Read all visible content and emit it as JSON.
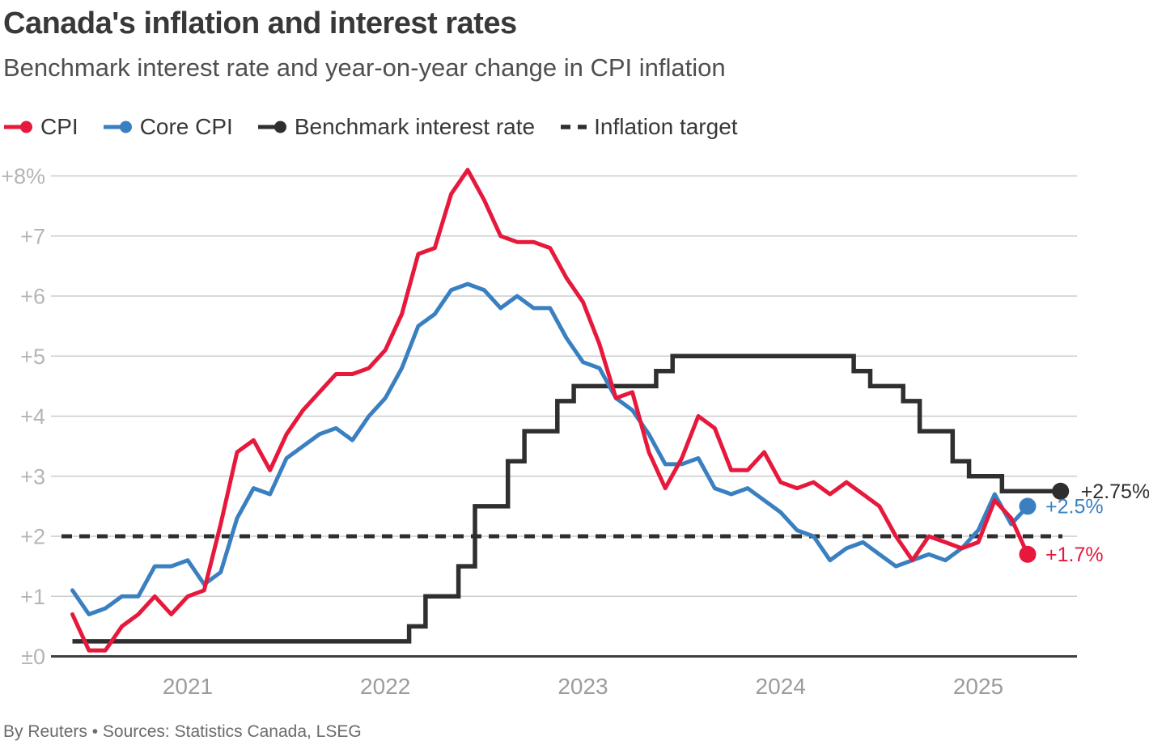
{
  "page": {
    "title": "Canada's inflation and interest rates",
    "subtitle": "Benchmark interest rate and year-on-year change in CPI inflation",
    "footer": "By Reuters • Sources: Statistics Canada, LSEG"
  },
  "legend": {
    "items": [
      {
        "label": "CPI",
        "marker": "line-dot",
        "color": "#e6193c"
      },
      {
        "label": "Core CPI",
        "marker": "line-dot",
        "color": "#3a80c1"
      },
      {
        "label": "Benchmark interest rate",
        "marker": "line-dot",
        "color": "#2f2f2f"
      },
      {
        "label": "Inflation target",
        "marker": "dashes",
        "color": "#2f2f2f"
      }
    ]
  },
  "chart_data": {
    "type": "line",
    "title": "Canada's inflation and interest rates",
    "subtitle": "Benchmark interest rate and year-on-year change in CPI inflation",
    "x_start_month": "2020-06",
    "x_frequency": "monthly",
    "x_axis": {
      "ticks": [
        {
          "label": "2021",
          "month_index": 7
        },
        {
          "label": "2022",
          "month_index": 19
        },
        {
          "label": "2023",
          "month_index": 31
        },
        {
          "label": "2024",
          "month_index": 43
        },
        {
          "label": "2025",
          "month_index": 55
        }
      ]
    },
    "y_axis": {
      "min": 0,
      "max": 8,
      "unit": "%",
      "ticks": [
        {
          "value": 8,
          "label": "+8%"
        },
        {
          "value": 7,
          "label": "+7"
        },
        {
          "value": 6,
          "label": "+6"
        },
        {
          "value": 5,
          "label": "+5"
        },
        {
          "value": 4,
          "label": "+4"
        },
        {
          "value": 3,
          "label": "+3"
        },
        {
          "value": 2,
          "label": "+2"
        },
        {
          "value": 1,
          "label": "+1"
        },
        {
          "value": 0,
          "label": "±0"
        }
      ]
    },
    "target_line": {
      "name": "Inflation target",
      "value": 2,
      "style": "dashed",
      "color": "#2f2f2f"
    },
    "series": [
      {
        "name": "CPI",
        "style": "line",
        "color": "#e6193c",
        "end_label": "+1.7%",
        "end_value": 1.7,
        "values": [
          0.7,
          0.1,
          0.1,
          0.5,
          0.7,
          1.0,
          0.7,
          1.0,
          1.1,
          2.2,
          3.4,
          3.6,
          3.1,
          3.7,
          4.1,
          4.4,
          4.7,
          4.7,
          4.8,
          5.1,
          5.7,
          6.7,
          6.8,
          7.7,
          8.1,
          7.6,
          7.0,
          6.9,
          6.9,
          6.8,
          6.3,
          5.9,
          5.2,
          4.3,
          4.4,
          3.4,
          2.8,
          3.3,
          4.0,
          3.8,
          3.1,
          3.1,
          3.4,
          2.9,
          2.8,
          2.9,
          2.7,
          2.9,
          2.7,
          2.5,
          2.0,
          1.6,
          2.0,
          1.9,
          1.8,
          1.9,
          2.6,
          2.3,
          1.7
        ]
      },
      {
        "name": "Core CPI",
        "style": "line",
        "color": "#3a80c1",
        "end_label": "+2.5%",
        "end_value": 2.5,
        "values": [
          1.1,
          0.7,
          0.8,
          1.0,
          1.0,
          1.5,
          1.5,
          1.6,
          1.2,
          1.4,
          2.3,
          2.8,
          2.7,
          3.3,
          3.5,
          3.7,
          3.8,
          3.6,
          4.0,
          4.3,
          4.8,
          5.5,
          5.7,
          6.1,
          6.2,
          6.1,
          5.8,
          6.0,
          5.8,
          5.8,
          5.3,
          4.9,
          4.8,
          4.3,
          4.1,
          3.7,
          3.2,
          3.2,
          3.3,
          2.8,
          2.7,
          2.8,
          2.6,
          2.4,
          2.1,
          2.0,
          1.6,
          1.8,
          1.9,
          1.7,
          1.5,
          1.6,
          1.7,
          1.6,
          1.8,
          2.1,
          2.7,
          2.2,
          2.5
        ]
      },
      {
        "name": "Benchmark interest rate",
        "style": "step",
        "color": "#2f2f2f",
        "end_label": "+2.75%",
        "end_value": 2.75,
        "values": [
          0.25,
          0.25,
          0.25,
          0.25,
          0.25,
          0.25,
          0.25,
          0.25,
          0.25,
          0.25,
          0.25,
          0.25,
          0.25,
          0.25,
          0.25,
          0.25,
          0.25,
          0.25,
          0.25,
          0.25,
          0.25,
          0.5,
          1.0,
          1.0,
          1.5,
          2.5,
          2.5,
          3.25,
          3.75,
          3.75,
          4.25,
          4.5,
          4.5,
          4.5,
          4.5,
          4.5,
          4.75,
          5.0,
          5.0,
          5.0,
          5.0,
          5.0,
          5.0,
          5.0,
          5.0,
          5.0,
          5.0,
          5.0,
          4.75,
          4.5,
          4.5,
          4.25,
          3.75,
          3.75,
          3.25,
          3.0,
          3.0,
          2.75,
          2.75,
          2.75,
          2.75
        ]
      }
    ],
    "colors": {
      "grid": "#cccccc",
      "baseline": "#3f3f3f",
      "axis_text": "#b5b5b5",
      "year_text": "#9c9c9c"
    },
    "grid": true,
    "legend_position": "top"
  }
}
